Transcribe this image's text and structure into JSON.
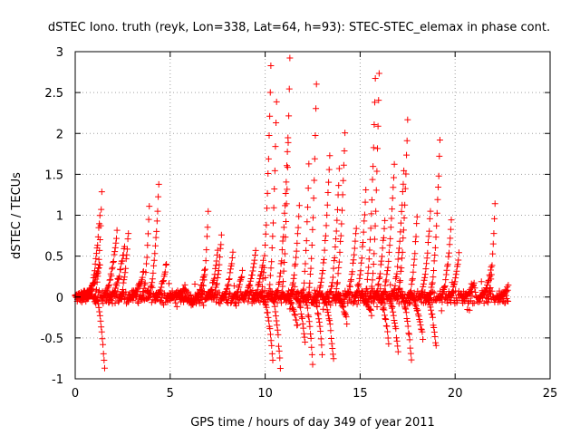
{
  "chart_data": {
    "type": "scatter",
    "title": "dSTEC Iono. truth (reyk, Lon=338, Lat=64, h=93): STEC-STEC_elemax in phase cont.",
    "xlabel": "GPS time / hours of day 349 of year 2011",
    "ylabel": "dSTEC  / TECUs",
    "xlim": [
      0,
      25
    ],
    "ylim": [
      -1,
      3
    ],
    "xticks": [
      0,
      5,
      10,
      15,
      20,
      25
    ],
    "yticks": [
      -1,
      -0.5,
      0,
      0.5,
      1,
      1.5,
      2,
      2.5,
      3
    ],
    "xtick_labels": [
      "0",
      "5",
      "10",
      "15",
      "20",
      "25"
    ],
    "ytick_labels": [
      "-1",
      "-0.5",
      "0",
      "0.5",
      "1",
      "1.5",
      "2",
      "2.5",
      "3"
    ],
    "grid": true,
    "marker": "+",
    "color": "#ff0000",
    "arcs": [
      {
        "start": 0.0,
        "end": 0.5,
        "peak": 0.06
      },
      {
        "start": 0.3,
        "end": 1.3,
        "peak": 0.4
      },
      {
        "start": 0.6,
        "end": 1.3,
        "peak": 1.0
      },
      {
        "start": 1.0,
        "end": 1.55,
        "peak": -0.88
      },
      {
        "start": 1.0,
        "end": 1.4,
        "peak": 1.3
      },
      {
        "start": 1.4,
        "end": 2.2,
        "peak": 0.8
      },
      {
        "start": 1.7,
        "end": 2.6,
        "peak": 0.62
      },
      {
        "start": 2.3,
        "end": 2.8,
        "peak": 0.8
      },
      {
        "start": 2.8,
        "end": 3.6,
        "peak": 0.3
      },
      {
        "start": 3.5,
        "end": 3.9,
        "peak": 1.1
      },
      {
        "start": 3.8,
        "end": 4.4,
        "peak": 1.35
      },
      {
        "start": 4.2,
        "end": 4.8,
        "peak": 0.42
      },
      {
        "start": 4.8,
        "end": 5.8,
        "peak": 0.1
      },
      {
        "start": 5.5,
        "end": 6.2,
        "peak": -0.12
      },
      {
        "start": 6.3,
        "end": 6.8,
        "peak": 0.3
      },
      {
        "start": 6.6,
        "end": 7.0,
        "peak": 1.05
      },
      {
        "start": 6.9,
        "end": 7.5,
        "peak": 0.55
      },
      {
        "start": 7.2,
        "end": 7.7,
        "peak": 0.75
      },
      {
        "start": 7.7,
        "end": 8.3,
        "peak": 0.55
      },
      {
        "start": 8.3,
        "end": 8.8,
        "peak": 0.3
      },
      {
        "start": 8.8,
        "end": 9.5,
        "peak": 0.55
      },
      {
        "start": 9.3,
        "end": 9.9,
        "peak": 0.45
      },
      {
        "start": 9.7,
        "end": 10.3,
        "peak": 2.8
      },
      {
        "start": 9.8,
        "end": 10.4,
        "peak": -0.75
      },
      {
        "start": 10.1,
        "end": 10.6,
        "peak": 2.4
      },
      {
        "start": 10.3,
        "end": 10.8,
        "peak": -0.88
      },
      {
        "start": 10.5,
        "end": 11.2,
        "peak": 1.95
      },
      {
        "start": 10.8,
        "end": 11.3,
        "peak": 2.9
      },
      {
        "start": 11.0,
        "end": 11.7,
        "peak": -0.35
      },
      {
        "start": 11.2,
        "end": 11.8,
        "peak": 1.1
      },
      {
        "start": 11.6,
        "end": 12.1,
        "peak": -0.58
      },
      {
        "start": 11.9,
        "end": 12.3,
        "peak": 1.6
      },
      {
        "start": 12.0,
        "end": 12.5,
        "peak": -0.82
      },
      {
        "start": 12.2,
        "end": 12.7,
        "peak": 2.6
      },
      {
        "start": 12.5,
        "end": 13.0,
        "peak": -0.68
      },
      {
        "start": 12.7,
        "end": 13.4,
        "peak": 1.7
      },
      {
        "start": 13.0,
        "end": 13.6,
        "peak": -0.78
      },
      {
        "start": 13.3,
        "end": 13.9,
        "peak": 1.55
      },
      {
        "start": 13.6,
        "end": 14.2,
        "peak": 2.0
      },
      {
        "start": 13.7,
        "end": 14.3,
        "peak": -0.3
      },
      {
        "start": 14.2,
        "end": 14.8,
        "peak": 0.85
      },
      {
        "start": 14.7,
        "end": 15.3,
        "peak": 1.3
      },
      {
        "start": 15.0,
        "end": 15.6,
        "peak": -0.2
      },
      {
        "start": 15.2,
        "end": 15.8,
        "peak": 2.65
      },
      {
        "start": 15.5,
        "end": 16.0,
        "peak": 2.75
      },
      {
        "start": 15.7,
        "end": 16.3,
        "peak": 0.95
      },
      {
        "start": 15.9,
        "end": 16.5,
        "peak": -0.55
      },
      {
        "start": 16.1,
        "end": 16.8,
        "peak": 1.62
      },
      {
        "start": 16.4,
        "end": 17.0,
        "peak": -0.68
      },
      {
        "start": 16.6,
        "end": 17.3,
        "peak": 1.55
      },
      {
        "start": 16.9,
        "end": 17.5,
        "peak": 2.15
      },
      {
        "start": 17.1,
        "end": 17.7,
        "peak": -0.78
      },
      {
        "start": 17.5,
        "end": 18.0,
        "peak": 1.0
      },
      {
        "start": 17.6,
        "end": 18.3,
        "peak": -0.5
      },
      {
        "start": 18.1,
        "end": 18.7,
        "peak": 1.05
      },
      {
        "start": 18.4,
        "end": 19.0,
        "peak": -0.6
      },
      {
        "start": 18.6,
        "end": 19.2,
        "peak": 1.9
      },
      {
        "start": 19.2,
        "end": 19.8,
        "peak": 0.92
      },
      {
        "start": 19.6,
        "end": 20.2,
        "peak": 0.52
      },
      {
        "start": 20.3,
        "end": 21.0,
        "peak": 0.15
      },
      {
        "start": 21.3,
        "end": 21.9,
        "peak": 0.35
      },
      {
        "start": 21.7,
        "end": 22.1,
        "peak": 1.15
      },
      {
        "start": 22.2,
        "end": 22.8,
        "peak": 0.12
      }
    ]
  }
}
